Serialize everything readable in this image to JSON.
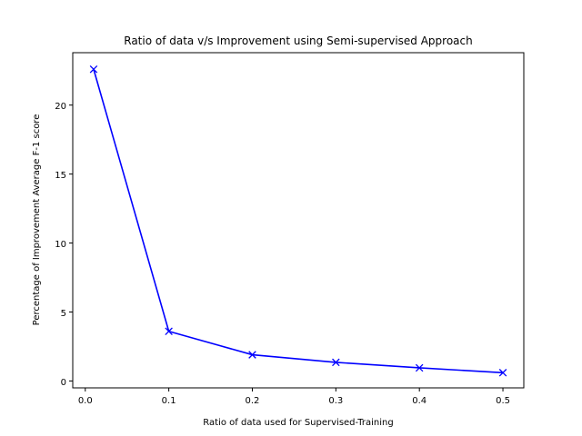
{
  "chart_data": {
    "type": "line",
    "title": "Ratio of data v/s Improvement using Semi-supervised Approach",
    "xlabel": "Ratio of data used for Supervised-Training",
    "ylabel": "Percentage of Improvement Average F-1 score",
    "xlim": [
      -0.015,
      0.525
    ],
    "ylim": [
      -0.5,
      23.8
    ],
    "xticks": [
      0.0,
      0.1,
      0.2,
      0.3,
      0.4,
      0.5
    ],
    "xtick_labels": [
      "0.0",
      "0.1",
      "0.2",
      "0.3",
      "0.4",
      "0.5"
    ],
    "yticks": [
      0,
      5,
      10,
      15,
      20
    ],
    "ytick_labels": [
      "0",
      "5",
      "10",
      "15",
      "20"
    ],
    "grid": false,
    "series": [
      {
        "color": "#0000ff",
        "marker": "x",
        "x": [
          0.01,
          0.1,
          0.2,
          0.3,
          0.4,
          0.5
        ],
        "y": [
          22.6,
          3.6,
          1.9,
          1.35,
          0.95,
          0.6
        ]
      }
    ]
  }
}
